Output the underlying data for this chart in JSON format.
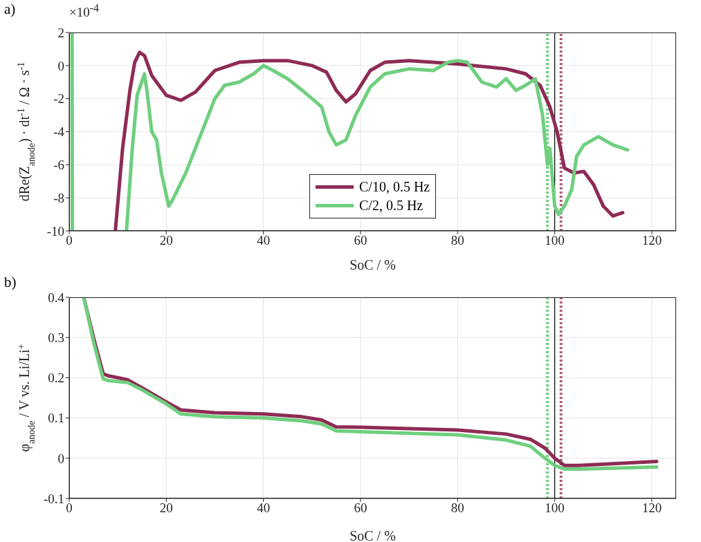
{
  "chart_data": [
    {
      "type": "line",
      "title": "a)",
      "xlabel": "SoC / %",
      "ylabel": "dRe(Z$_{anode}$) · dt$^{-1}$ / Ω · s$^{-1}$",
      "annotations": [
        "×10$^{-4}$"
      ],
      "xlim": [
        0,
        125
      ],
      "xticks": [
        0,
        20,
        40,
        60,
        80,
        100,
        120
      ],
      "ylim": [
        -10,
        2
      ],
      "yticks": [
        -10,
        -8,
        -6,
        -4,
        -2,
        0,
        2
      ],
      "grid": true,
      "legend": "bottom",
      "line_style": "solid",
      "marker": "none",
      "series": [
        {
          "name": "C/10, 0.5 Hz",
          "color": "#8e2b55",
          "x": [
            9.5,
            11,
            12.5,
            13.5,
            14.5,
            15.5,
            17,
            20,
            23,
            26,
            30,
            35,
            40,
            45,
            50,
            53,
            55,
            57,
            59,
            62,
            65,
            70,
            80,
            90,
            94,
            97,
            99,
            100.5,
            102,
            104,
            106,
            108,
            110,
            112,
            114
          ],
          "values": [
            -10,
            -5,
            -1.5,
            0.2,
            0.8,
            0.6,
            -0.6,
            -1.8,
            -2.1,
            -1.6,
            -0.3,
            0.2,
            0.3,
            0.3,
            0,
            -0.4,
            -1.5,
            -2.2,
            -1.7,
            -0.3,
            0.2,
            0.3,
            0.1,
            -0.2,
            -0.5,
            -1.2,
            -2.5,
            -4,
            -6.2,
            -6.5,
            -6.4,
            -7.2,
            -8.5,
            -9.1,
            -8.9
          ]
        },
        {
          "name": "C/2, 0.5 Hz",
          "color": "#6fcf7f",
          "x": [
            0.6,
            0.65,
            6,
            11.8,
            13,
            14,
            15.5,
            16,
            17,
            18,
            19,
            20.5,
            21.5,
            24,
            26,
            28,
            30,
            32,
            35,
            38,
            40,
            42,
            45,
            48,
            50,
            52,
            53.5,
            55,
            57,
            59,
            62,
            65,
            70,
            75,
            78,
            80,
            82,
            85,
            88,
            90,
            92,
            94,
            96,
            97.5,
            98.5,
            99,
            100,
            100.8,
            102,
            103.5,
            104.5,
            106,
            109,
            112,
            115
          ],
          "values": [
            2,
            -10,
            null,
            -10,
            -5,
            -1.8,
            -0.5,
            -1.5,
            -4,
            -4.5,
            -6.5,
            -8.5,
            -8,
            -6.5,
            -5,
            -3.5,
            -2,
            -1.2,
            -1,
            -0.5,
            0,
            -0.3,
            -0.8,
            -1.5,
            -2,
            -2.5,
            -4,
            -4.8,
            -4.5,
            -3,
            -1.3,
            -0.5,
            -0.2,
            -0.3,
            0.2,
            0.3,
            0.2,
            -1,
            -1.3,
            -0.8,
            -1.5,
            -1.2,
            -0.8,
            -3,
            -6,
            -5,
            -8.5,
            -9,
            -8.5,
            -7.5,
            -5.5,
            -4.8,
            -4.3,
            -4.8,
            -5.1
          ]
        }
      ],
      "ref_lines": [
        {
          "axis": "x",
          "value": 98.5,
          "color": "#6fcf7f",
          "line_style": "dotted"
        },
        {
          "axis": "x",
          "value": 101.3,
          "color": "#b05a7a",
          "line_style": "dotted"
        },
        {
          "axis": "x",
          "value": 100,
          "color": "#000000",
          "line_style": "solid"
        }
      ]
    },
    {
      "type": "line",
      "title": "b)",
      "xlabel": "SoC / %",
      "ylabel": "φ$_{anode}$ / V vs. Li/Li$^{+}$",
      "xlim": [
        0,
        125
      ],
      "xticks": [
        0,
        20,
        40,
        60,
        80,
        100,
        120
      ],
      "ylim": [
        -0.1,
        0.4
      ],
      "yticks": [
        -0.1,
        0,
        0.1,
        0.2,
        0.3,
        0.4
      ],
      "grid": true,
      "line_style": "solid",
      "marker": "none",
      "series": [
        {
          "color": "#8e2b55",
          "x": [
            3,
            5,
            7,
            8,
            12,
            15,
            20,
            23,
            30,
            40,
            48,
            52,
            55,
            60,
            80,
            90,
            95,
            98,
            100,
            102,
            105,
            121
          ],
          "values": [
            0.4,
            0.3,
            0.21,
            0.205,
            0.195,
            0.175,
            0.14,
            0.12,
            0.113,
            0.11,
            0.103,
            0.095,
            0.078,
            0.077,
            0.07,
            0.06,
            0.047,
            0.025,
            0,
            -0.018,
            -0.018,
            -0.008
          ]
        },
        {
          "color": "#6fcf7f",
          "x": [
            3,
            5,
            7,
            8,
            12,
            15,
            20,
            23,
            30,
            40,
            48,
            52,
            55,
            60,
            80,
            90,
            95,
            98,
            100,
            102,
            105,
            121
          ],
          "values": [
            0.4,
            0.29,
            0.197,
            0.193,
            0.188,
            0.17,
            0.135,
            0.11,
            0.103,
            0.1,
            0.093,
            0.085,
            0.068,
            0.066,
            0.058,
            0.045,
            0.03,
            0,
            -0.018,
            -0.027,
            -0.027,
            -0.022
          ]
        }
      ],
      "ref_lines": [
        {
          "axis": "x",
          "value": 98.5,
          "color": "#6fcf7f",
          "line_style": "dotted"
        },
        {
          "axis": "x",
          "value": 101.3,
          "color": "#b05a7a",
          "line_style": "dotted"
        },
        {
          "axis": "x",
          "value": 100,
          "color": "#000000",
          "line_style": "solid"
        }
      ]
    }
  ]
}
